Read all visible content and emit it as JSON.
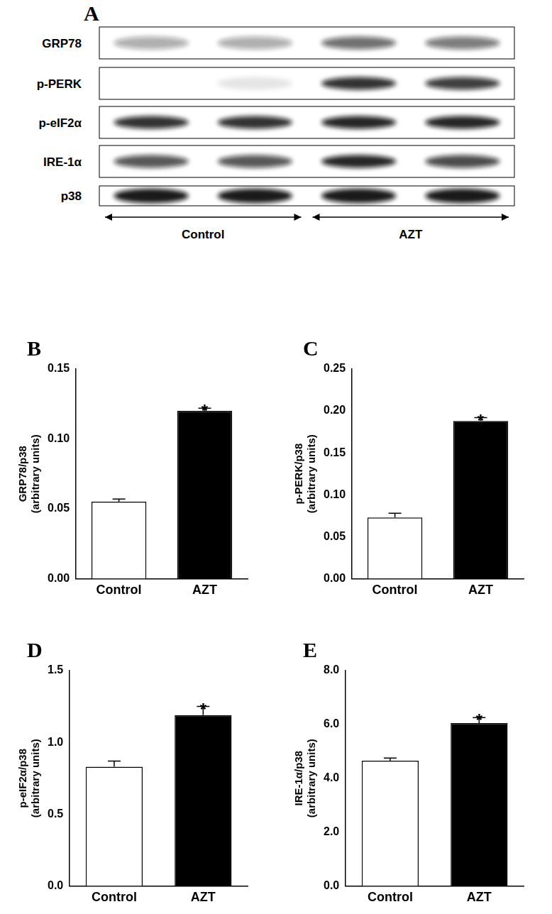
{
  "blot": {
    "panel": "A",
    "rows": [
      {
        "label": "GRP78",
        "bands": [
          0.35,
          0.35,
          0.6,
          0.55
        ]
      },
      {
        "label": "p-PERK",
        "bands": [
          0.0,
          0.1,
          0.85,
          0.8
        ]
      },
      {
        "label": "p-eIF2α",
        "bands": [
          0.85,
          0.85,
          0.9,
          0.9
        ]
      },
      {
        "label": "IRE-1α",
        "bands": [
          0.7,
          0.7,
          0.9,
          0.75
        ]
      },
      {
        "label": "p38",
        "bands": [
          0.95,
          0.95,
          0.95,
          0.95
        ]
      }
    ],
    "groups": [
      {
        "label": "Control",
        "lanes": 2
      },
      {
        "label": "AZT",
        "lanes": 2
      }
    ]
  },
  "chart_data": [
    {
      "panel": "B",
      "type": "bar",
      "categories": [
        "Control",
        "AZT"
      ],
      "values": [
        0.055,
        0.12
      ],
      "errors": [
        0.002,
        0.002
      ],
      "colors": [
        "#ffffff",
        "#000000"
      ],
      "y_label": [
        "GRP78/p38",
        "(arbitrary units)"
      ],
      "ylim": [
        0,
        0.15
      ],
      "yticks": [
        {
          "value": 0,
          "label": "0.00"
        },
        {
          "value": 0.05,
          "label": "0.05"
        },
        {
          "value": 0.1,
          "label": "0.10"
        },
        {
          "value": 0.15,
          "label": "0.15"
        }
      ],
      "annotations": [
        {
          "text": "*",
          "category": "AZT"
        }
      ],
      "grid": false
    },
    {
      "panel": "C",
      "type": "bar",
      "categories": [
        "Control",
        "AZT"
      ],
      "values": [
        0.073,
        0.188
      ],
      "errors": [
        0.005,
        0.004
      ],
      "colors": [
        "#ffffff",
        "#000000"
      ],
      "y_label": [
        "p-PERK/p38",
        "(arbitrary units)"
      ],
      "ylim": [
        0,
        0.25
      ],
      "yticks": [
        {
          "value": 0,
          "label": "0.00"
        },
        {
          "value": 0.05,
          "label": "0.05"
        },
        {
          "value": 0.1,
          "label": "0.10"
        },
        {
          "value": 0.15,
          "label": "0.15"
        },
        {
          "value": 0.2,
          "label": "0.20"
        },
        {
          "value": 0.25,
          "label": "0.25"
        }
      ],
      "annotations": [
        {
          "text": "*",
          "category": "AZT"
        }
      ],
      "grid": false
    },
    {
      "panel": "D",
      "type": "bar",
      "categories": [
        "Control",
        "AZT"
      ],
      "values": [
        0.83,
        1.19
      ],
      "errors": [
        0.04,
        0.06
      ],
      "colors": [
        "#ffffff",
        "#000000"
      ],
      "y_label": [
        "p-eIF2α/p38",
        "(arbitrary units)"
      ],
      "ylim": [
        0,
        1.5
      ],
      "yticks": [
        {
          "value": 0,
          "label": "0.0"
        },
        {
          "value": 0.5,
          "label": "0.5"
        },
        {
          "value": 1,
          "label": "1.0"
        },
        {
          "value": 1.5,
          "label": "1.5"
        }
      ],
      "annotations": [
        {
          "text": "*",
          "category": "AZT"
        }
      ],
      "grid": false
    },
    {
      "panel": "E",
      "type": "bar",
      "categories": [
        "Control",
        "AZT"
      ],
      "values": [
        4.65,
        6.05
      ],
      "errors": [
        0.1,
        0.2
      ],
      "colors": [
        "#ffffff",
        "#000000"
      ],
      "y_label": [
        "IRE-1α/p38",
        "(arbitrary units)"
      ],
      "ylim": [
        0,
        8
      ],
      "yticks": [
        {
          "value": 0,
          "label": "0.0"
        },
        {
          "value": 2,
          "label": "2.0"
        },
        {
          "value": 4,
          "label": "4.0"
        },
        {
          "value": 6,
          "label": "6.0"
        },
        {
          "value": 8,
          "label": "8.0"
        }
      ],
      "annotations": [
        {
          "text": "*",
          "category": "AZT"
        }
      ],
      "grid": false
    }
  ]
}
